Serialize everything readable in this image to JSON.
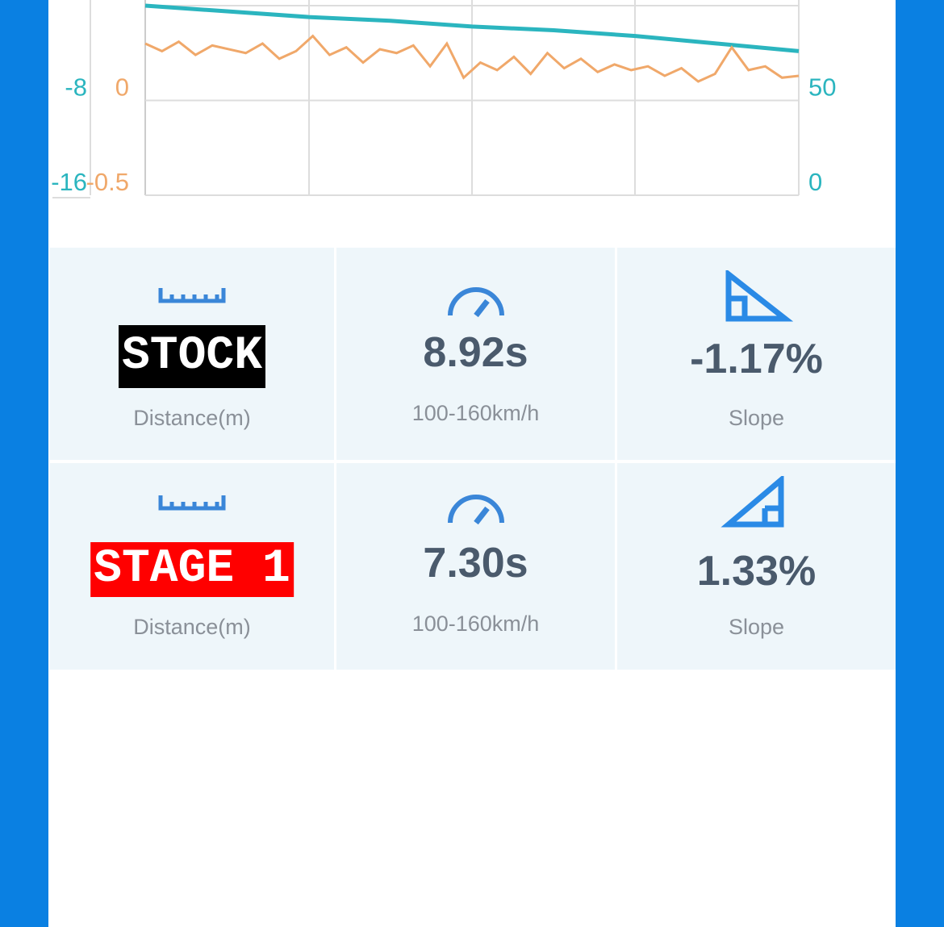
{
  "chart": {
    "axes": {
      "left": {
        "lim": [
          -16,
          0
        ],
        "ticks": [
          -16,
          -8
        ],
        "color": "#2bb5bf"
      },
      "middle": {
        "lim": [
          -0.5,
          0.5
        ],
        "ticks": [
          -0.5,
          0
        ],
        "color": "#f0a86a"
      },
      "right": {
        "lim": [
          0,
          100
        ],
        "ticks": [
          0,
          50
        ],
        "color": "#2bb5bf"
      }
    },
    "series": [
      {
        "axis": "right",
        "color": "#2bb5bf",
        "values": [
          100,
          97,
          94,
          92,
          89,
          87,
          84,
          80,
          76
        ]
      },
      {
        "axis": "middle",
        "color": "#f0a86a",
        "values": [
          0.3,
          0.26,
          0.31,
          0.24,
          0.29,
          0.27,
          0.25,
          0.3,
          0.22,
          0.26,
          0.34,
          0.24,
          0.28,
          0.2,
          0.27,
          0.25,
          0.29,
          0.18,
          0.3,
          0.12,
          0.2,
          0.16,
          0.23,
          0.14,
          0.25,
          0.17,
          0.22,
          0.15,
          0.19,
          0.16,
          0.18,
          0.13,
          0.17,
          0.1,
          0.14,
          0.28,
          0.16,
          0.18,
          0.12,
          0.13
        ]
      }
    ]
  },
  "rows": [
    {
      "badge": "STOCK",
      "badge_caption": "Distance(m)",
      "time": "8.92s",
      "time_caption": "100-160km/h",
      "slope": "-1.17%",
      "slope_caption": "Slope"
    },
    {
      "badge": "STAGE 1",
      "badge_caption": "Distance(m)",
      "time": "7.30s",
      "time_caption": "100-160km/h",
      "slope": "1.33%",
      "slope_caption": "Slope"
    }
  ]
}
